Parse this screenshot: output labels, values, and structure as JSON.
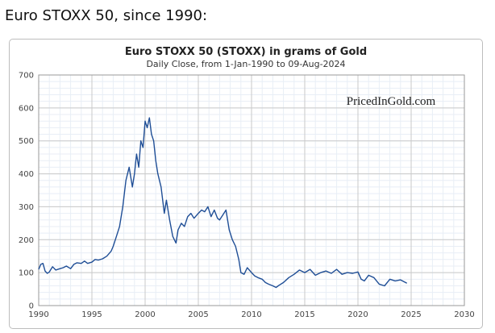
{
  "page": {
    "heading": "Euro STOXX 50, since 1990:"
  },
  "chart_data": {
    "type": "line",
    "title": "Euro STOXX 50 (STOXX) in grams of Gold",
    "subtitle": "Daily Close, from 1-Jan-1990 to 09-Aug-2024",
    "watermark": "PricedInGold.com",
    "xlabel": "",
    "ylabel": "",
    "xlim": [
      1990,
      2030
    ],
    "ylim": [
      0,
      700
    ],
    "x_ticks": [
      1990,
      1995,
      2000,
      2005,
      2010,
      2015,
      2020,
      2025,
      2030
    ],
    "y_ticks": [
      0,
      100,
      200,
      300,
      400,
      500,
      600,
      700
    ],
    "grid": true,
    "line_color": "#1f4e96",
    "series": [
      {
        "x": [
          1990.0,
          1990.2,
          1990.4,
          1990.6,
          1990.8,
          1991.0,
          1991.3,
          1991.6,
          1992.0,
          1992.3,
          1992.6,
          1993.0,
          1993.3,
          1993.6,
          1994.0,
          1994.3,
          1994.6,
          1995.0,
          1995.3,
          1995.6,
          1996.0,
          1996.4,
          1996.8,
          1997.0,
          1997.3,
          1997.6,
          1997.9,
          1998.2,
          1998.5,
          1998.8,
          1999.0,
          1999.2,
          1999.4,
          1999.6,
          1999.8,
          2000.0,
          2000.2,
          2000.4,
          2000.6,
          2000.8,
          2001.0,
          2001.2,
          2001.5,
          2001.8,
          2002.0,
          2002.3,
          2002.6,
          2002.9,
          2003.1,
          2003.4,
          2003.7,
          2004.0,
          2004.3,
          2004.6,
          2005.0,
          2005.3,
          2005.6,
          2005.9,
          2006.2,
          2006.5,
          2006.8,
          2007.0,
          2007.3,
          2007.6,
          2007.9,
          2008.2,
          2008.5,
          2008.8,
          2009.0,
          2009.3,
          2009.6,
          2010.0,
          2010.3,
          2010.6,
          2011.0,
          2011.3,
          2011.6,
          2012.0,
          2012.3,
          2012.6,
          2013.0,
          2013.5,
          2014.0,
          2014.5,
          2015.0,
          2015.5,
          2016.0,
          2016.5,
          2017.0,
          2017.5,
          2018.0,
          2018.5,
          2019.0,
          2019.5,
          2020.0,
          2020.3,
          2020.6,
          2021.0,
          2021.5,
          2022.0,
          2022.5,
          2023.0,
          2023.5,
          2024.0,
          2024.6
        ],
        "y": [
          110,
          125,
          128,
          105,
          98,
          102,
          118,
          108,
          112,
          115,
          120,
          112,
          125,
          130,
          128,
          135,
          128,
          132,
          140,
          138,
          142,
          150,
          165,
          180,
          210,
          240,
          300,
          380,
          420,
          360,
          400,
          460,
          420,
          500,
          480,
          560,
          540,
          570,
          520,
          500,
          440,
          400,
          360,
          280,
          320,
          260,
          210,
          190,
          230,
          250,
          240,
          270,
          280,
          265,
          280,
          290,
          285,
          300,
          270,
          290,
          265,
          260,
          275,
          290,
          230,
          200,
          180,
          140,
          100,
          95,
          115,
          100,
          90,
          85,
          80,
          70,
          65,
          60,
          55,
          62,
          70,
          85,
          95,
          108,
          100,
          110,
          92,
          100,
          105,
          98,
          110,
          95,
          100,
          98,
          102,
          80,
          75,
          92,
          85,
          65,
          60,
          80,
          75,
          78,
          68
        ]
      }
    ]
  }
}
